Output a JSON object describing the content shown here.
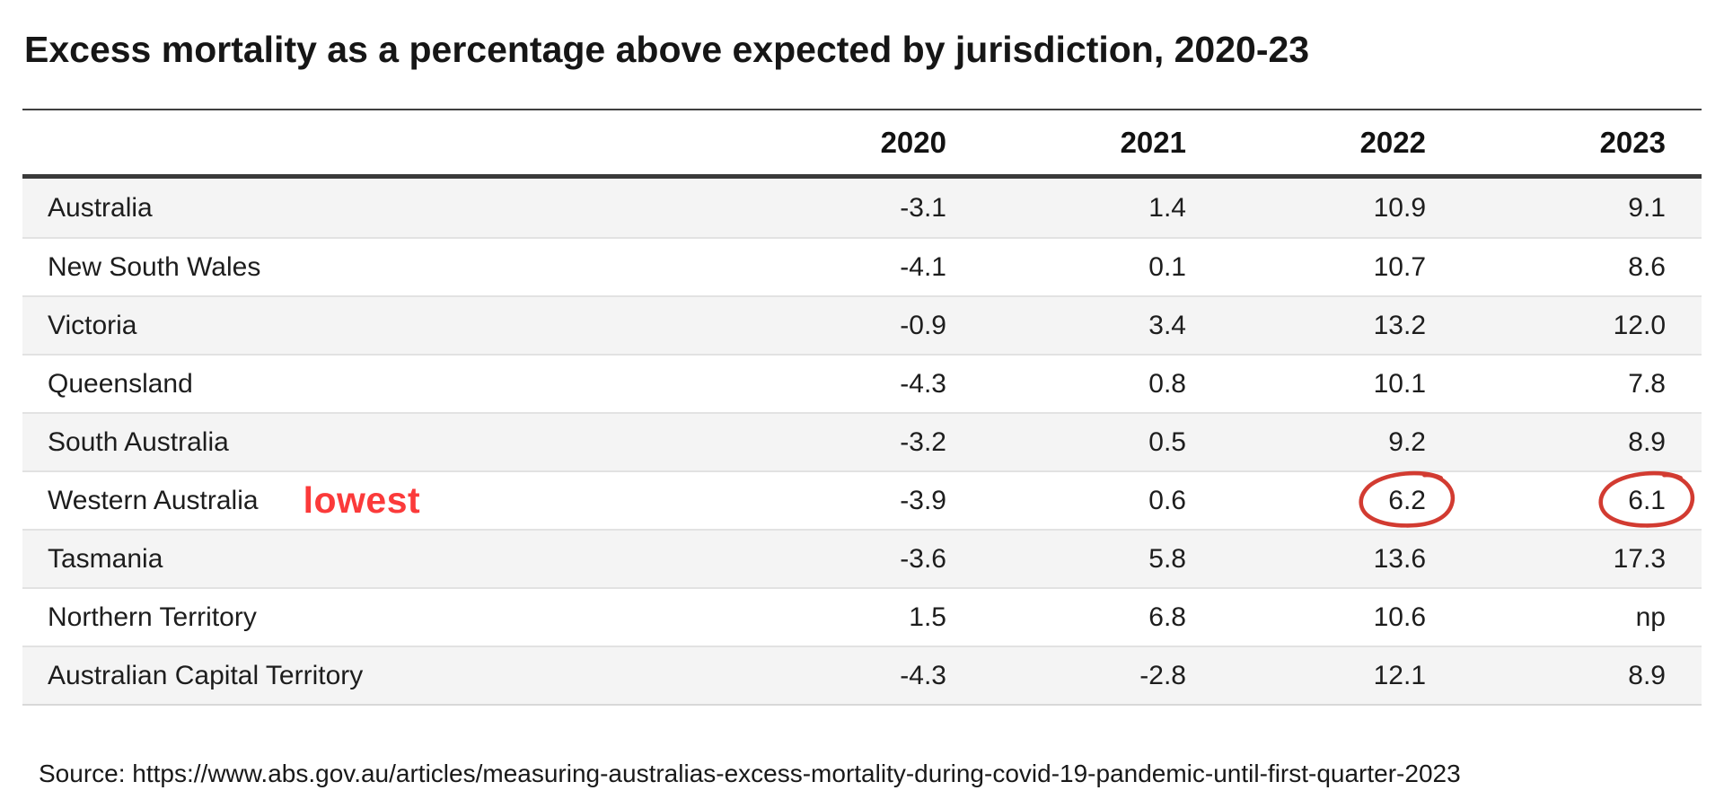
{
  "chart_data": {
    "type": "table",
    "title": "Excess mortality as a percentage above expected by jurisdiction, 2020-23",
    "columns": [
      "2020",
      "2021",
      "2022",
      "2023"
    ],
    "rows": [
      {
        "jurisdiction": "Australia",
        "values": [
          "-3.1",
          "1.4",
          "10.9",
          "9.1"
        ]
      },
      {
        "jurisdiction": "New South Wales",
        "values": [
          "-4.1",
          "0.1",
          "10.7",
          "8.6"
        ]
      },
      {
        "jurisdiction": "Victoria",
        "values": [
          "-0.9",
          "3.4",
          "13.2",
          "12.0"
        ]
      },
      {
        "jurisdiction": "Queensland",
        "values": [
          "-4.3",
          "0.8",
          "10.1",
          "7.8"
        ]
      },
      {
        "jurisdiction": "South Australia",
        "values": [
          "-3.2",
          "0.5",
          "9.2",
          "8.9"
        ]
      },
      {
        "jurisdiction": "Western Australia",
        "values": [
          "-3.9",
          "0.6",
          "6.2",
          "6.1"
        ],
        "annotation": "lowest",
        "circled": [
          2,
          3
        ]
      },
      {
        "jurisdiction": "Tasmania",
        "values": [
          "-3.6",
          "5.8",
          "13.6",
          "17.3"
        ]
      },
      {
        "jurisdiction": "Northern Territory",
        "values": [
          "1.5",
          "6.8",
          "10.6",
          "np"
        ]
      },
      {
        "jurisdiction": "Australian Capital Territory",
        "values": [
          "-4.3",
          "-2.8",
          "12.1",
          "8.9"
        ]
      }
    ],
    "annotations": [
      {
        "text": "lowest",
        "row": "Western Australia",
        "style": "handwritten-red-text"
      },
      {
        "type": "circle",
        "cells": [
          [
            "Western Australia",
            "2022"
          ],
          [
            "Western Australia",
            "2023"
          ]
        ],
        "style": "hand-drawn-red-circle"
      }
    ],
    "source": "Source: https://www.abs.gov.au/articles/measuring-australias-excess-mortality-during-covid-19-pandemic-until-first-quarter-2023",
    "layout": {
      "row_alternating": true,
      "grid": "horizontal-rules-only"
    }
  },
  "colors": {
    "annotation_red": "#fb3a3a",
    "circle_red": "#d23b31",
    "row_alt_bg": "#f4f4f4",
    "rule_dark": "#3a3a3a",
    "text": "#1d1d1d"
  }
}
